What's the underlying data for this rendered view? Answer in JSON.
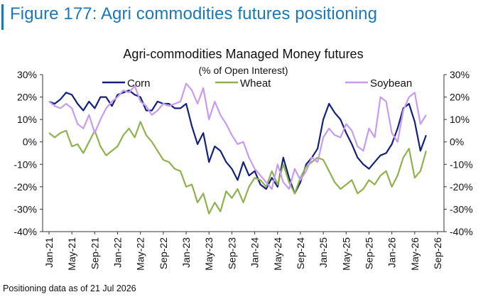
{
  "figure_title": "Figure 177: Agri commodities futures positioning",
  "footnote": "Positioning data as of 21 Jul 2026",
  "chart_data": {
    "type": "line",
    "title": "Agri-commodities Managed Money futures",
    "subtitle": "(% of Open Interest)",
    "xlabel": "",
    "ylabel": "",
    "ylim": [
      -40,
      30
    ],
    "yticks": [
      "30%",
      "20%",
      "10%",
      "0%",
      "-10%",
      "-20%",
      "-30%",
      "-40%"
    ],
    "yticks_right": [
      "30%",
      "20%",
      "10%",
      "0%",
      "-10%",
      "-20%",
      "-30%",
      "-40%"
    ],
    "xticks": [
      "Jan-21",
      "May-21",
      "Sep-21",
      "Jan-22",
      "May-22",
      "Sep-22",
      "Jan-23",
      "May-23",
      "Sep-23",
      "Jan-24",
      "May-24",
      "Sep-24",
      "Jan-25",
      "May-25",
      "Sep-25",
      "Jan-26",
      "May-26",
      "Sep-26"
    ],
    "grid": false,
    "legend": "top",
    "series": [
      {
        "name": "Corn",
        "color": "#14217a",
        "x": [
          "2021-01",
          "2021-02",
          "2021-03",
          "2021-04",
          "2021-05",
          "2021-06",
          "2021-07",
          "2021-08",
          "2021-09",
          "2021-10",
          "2021-11",
          "2021-12",
          "2022-01",
          "2022-02",
          "2022-03",
          "2022-04",
          "2022-05",
          "2022-06",
          "2022-07",
          "2022-08",
          "2022-09",
          "2022-10",
          "2022-11",
          "2022-12",
          "2023-01",
          "2023-02",
          "2023-03",
          "2023-04",
          "2023-05",
          "2023-06",
          "2023-07",
          "2023-08",
          "2023-09",
          "2023-10",
          "2023-11",
          "2023-12",
          "2024-01",
          "2024-02",
          "2024-03",
          "2024-04",
          "2024-05",
          "2024-06",
          "2024-07",
          "2024-08",
          "2024-09",
          "2024-10",
          "2024-11",
          "2024-12",
          "2025-01",
          "2025-02",
          "2025-03",
          "2025-04",
          "2025-05",
          "2025-06",
          "2025-07",
          "2025-08",
          "2025-09",
          "2025-10",
          "2025-11",
          "2025-12",
          "2026-01",
          "2026-02",
          "2026-03",
          "2026-04",
          "2026-05",
          "2026-06",
          "2026-07"
        ],
        "values": [
          18,
          17,
          19,
          22,
          21,
          17,
          14,
          18,
          15,
          20,
          20,
          16,
          21,
          22,
          23,
          21,
          20,
          14,
          14,
          18,
          17,
          17,
          15,
          15,
          17,
          7,
          -1,
          4,
          -9,
          -2,
          -4,
          -9,
          -12,
          -17,
          -9,
          -15,
          -13,
          -19,
          -21,
          -16,
          -20,
          -7,
          -16,
          -23,
          -18,
          -10,
          -7,
          -3,
          10,
          17,
          13,
          10,
          4,
          -1,
          -7,
          -10,
          -12,
          -9,
          -6,
          -5,
          -1,
          6,
          15,
          17,
          9,
          -4,
          3
        ]
      },
      {
        "name": "Wheat",
        "color": "#8fb14e",
        "x": [
          "2021-01",
          "2021-02",
          "2021-03",
          "2021-04",
          "2021-05",
          "2021-06",
          "2021-07",
          "2021-08",
          "2021-09",
          "2021-10",
          "2021-11",
          "2021-12",
          "2022-01",
          "2022-02",
          "2022-03",
          "2022-04",
          "2022-05",
          "2022-06",
          "2022-07",
          "2022-08",
          "2022-09",
          "2022-10",
          "2022-11",
          "2022-12",
          "2023-01",
          "2023-02",
          "2023-03",
          "2023-04",
          "2023-05",
          "2023-06",
          "2023-07",
          "2023-08",
          "2023-09",
          "2023-10",
          "2023-11",
          "2023-12",
          "2024-01",
          "2024-02",
          "2024-03",
          "2024-04",
          "2024-05",
          "2024-06",
          "2024-07",
          "2024-08",
          "2024-09",
          "2024-10",
          "2024-11",
          "2024-12",
          "2025-01",
          "2025-02",
          "2025-03",
          "2025-04",
          "2025-05",
          "2025-06",
          "2025-07",
          "2025-08",
          "2025-09",
          "2025-10",
          "2025-11",
          "2025-12",
          "2026-01",
          "2026-02",
          "2026-03",
          "2026-04",
          "2026-05",
          "2026-06",
          "2026-07"
        ],
        "values": [
          4,
          2,
          4,
          5,
          -2,
          -1,
          -5,
          0,
          5,
          -2,
          -6,
          -4,
          -2,
          3,
          6,
          2,
          9,
          3,
          0,
          -4,
          -8,
          -9,
          -12,
          -13,
          -20,
          -19,
          -27,
          -23,
          -32,
          -27,
          -31,
          -22,
          -25,
          -21,
          -27,
          -20,
          -16,
          -17,
          -20,
          -13,
          -19,
          -10,
          -18,
          -23,
          -16,
          -11,
          -9,
          -7,
          -8,
          -13,
          -18,
          -21,
          -19,
          -17,
          -23,
          -21,
          -17,
          -19,
          -15,
          -13,
          -20,
          -15,
          -7,
          -3,
          -16,
          -13,
          -4
        ]
      },
      {
        "name": "Soybean",
        "color": "#c79cf0",
        "x": [
          "2021-01",
          "2021-02",
          "2021-03",
          "2021-04",
          "2021-05",
          "2021-06",
          "2021-07",
          "2021-08",
          "2021-09",
          "2021-10",
          "2021-11",
          "2021-12",
          "2022-01",
          "2022-02",
          "2022-03",
          "2022-04",
          "2022-05",
          "2022-06",
          "2022-07",
          "2022-08",
          "2022-09",
          "2022-10",
          "2022-11",
          "2022-12",
          "2023-01",
          "2023-02",
          "2023-03",
          "2023-04",
          "2023-05",
          "2023-06",
          "2023-07",
          "2023-08",
          "2023-09",
          "2023-10",
          "2023-11",
          "2023-12",
          "2024-01",
          "2024-02",
          "2024-03",
          "2024-04",
          "2024-05",
          "2024-06",
          "2024-07",
          "2024-08",
          "2024-09",
          "2024-10",
          "2024-11",
          "2024-12",
          "2025-01",
          "2025-02",
          "2025-03",
          "2025-04",
          "2025-05",
          "2025-06",
          "2025-07",
          "2025-08",
          "2025-09",
          "2025-10",
          "2025-11",
          "2025-12",
          "2026-01",
          "2026-02",
          "2026-03",
          "2026-04",
          "2026-05",
          "2026-06",
          "2026-07"
        ],
        "values": [
          18,
          16,
          15,
          17,
          15,
          8,
          6,
          12,
          4,
          10,
          15,
          18,
          20,
          23,
          22,
          25,
          18,
          16,
          12,
          14,
          17,
          16,
          17,
          18,
          26,
          23,
          17,
          24,
          10,
          18,
          12,
          8,
          3,
          -1,
          0,
          -7,
          -12,
          -15,
          -18,
          -21,
          -10,
          -18,
          -21,
          -12,
          -17,
          -13,
          -7,
          -9,
          2,
          6,
          3,
          2,
          8,
          5,
          -2,
          -4,
          6,
          2,
          20,
          18,
          4,
          0,
          14,
          20,
          22,
          8,
          12
        ]
      }
    ]
  }
}
